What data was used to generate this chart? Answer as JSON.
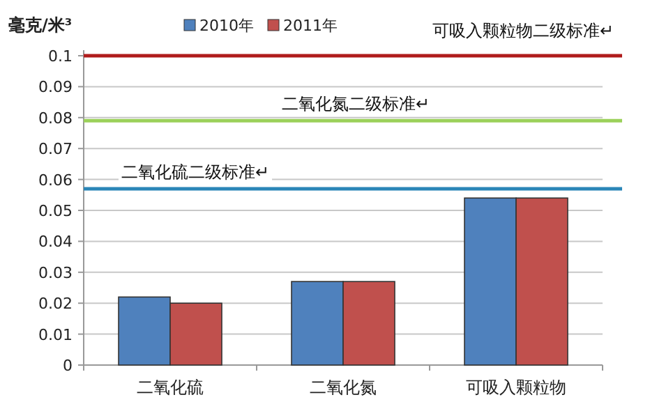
{
  "chart_data": {
    "type": "bar",
    "ylabel": "毫克/米³",
    "categories": [
      "二氧化硫",
      "二氧化氮",
      "可吸入颗粒物"
    ],
    "series": [
      {
        "name": "2010年",
        "color": "#4f81bd",
        "values": [
          0.022,
          0.027,
          0.054
        ]
      },
      {
        "name": "2011年",
        "color": "#c0504d",
        "values": [
          0.02,
          0.027,
          0.054
        ]
      }
    ],
    "ylim": [
      0,
      0.1
    ],
    "yticks": [
      0,
      0.01,
      0.02,
      0.03,
      0.04,
      0.05,
      0.06,
      0.07,
      0.08,
      0.09,
      0.1
    ],
    "grid": "y",
    "legend": "top",
    "ref_lines": [
      {
        "axis": "y",
        "value": 0.1,
        "label": "可吸入颗粒物二级标准↵",
        "color": "#b01c1c"
      },
      {
        "axis": "y",
        "value": 0.079,
        "label": "二氧化氮二级标准↵",
        "color": "#9bd15a"
      },
      {
        "axis": "y",
        "value": 0.057,
        "label": "二氧化硫二级标准↵",
        "color": "#2a86b8"
      }
    ]
  }
}
